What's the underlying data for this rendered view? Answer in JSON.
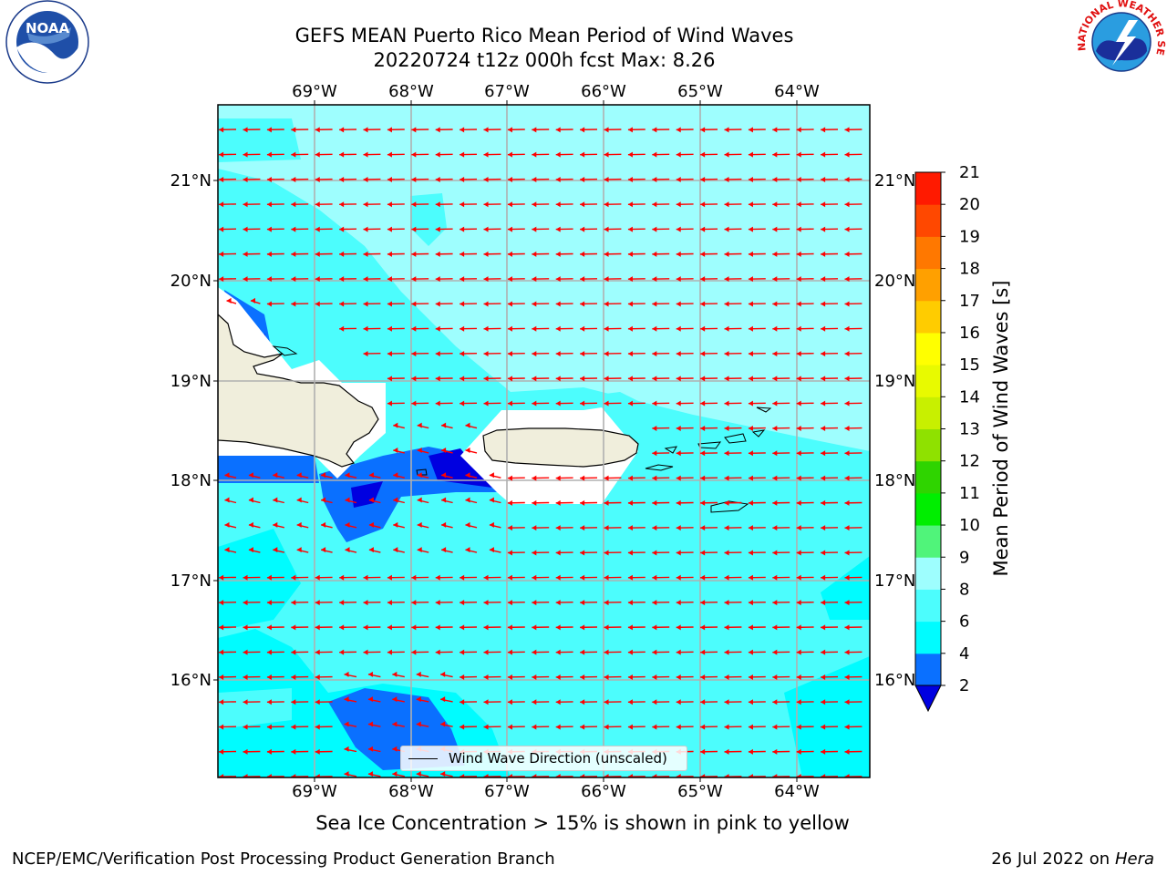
{
  "title": {
    "line1": "GEFS MEAN Puerto Rico Mean Period of Wind Waves",
    "line2": "20220724 t12z 000h fcst   Max: 8.26"
  },
  "map": {
    "lon_ticks": [
      "69°W",
      "68°W",
      "67°W",
      "66°W",
      "65°W",
      "64°W"
    ],
    "lat_ticks": [
      "21°N",
      "20°N",
      "19°N",
      "18°N",
      "17°N",
      "16°N"
    ],
    "legend_label": "Wind Wave Direction (unscaled)",
    "arrow_color": "#ff0000"
  },
  "colorbar": {
    "label": "Mean Period of Wind Waves [s]",
    "ticks": [
      "2",
      "4",
      "6",
      "8",
      "9",
      "10",
      "11",
      "12",
      "13",
      "14",
      "15",
      "16",
      "17",
      "18",
      "19",
      "20",
      "21"
    ],
    "colors": [
      "#0000e0",
      "#0a70ff",
      "#00fcff",
      "#4cfdfd",
      "#9efefe",
      "#50f47a",
      "#00ee00",
      "#2fd400",
      "#8fe100",
      "#c8f000",
      "#e8fa00",
      "#ffff00",
      "#ffcc00",
      "#ffa000",
      "#ff7800",
      "#ff4800",
      "#ff1a00",
      "#ff0000"
    ]
  },
  "sea_ice_note": "Sea Ice Concentration > 15% is shown in pink to yellow",
  "footer": {
    "left": "NCEP/EMC/Verification Post Processing Product Generation Branch",
    "right_date": "26 Jul 2022 on ",
    "right_host": "Hera"
  },
  "logos": {
    "noaa_text": "NOAA",
    "nws_text": "NATIONAL WEATHER SERVICE"
  }
}
